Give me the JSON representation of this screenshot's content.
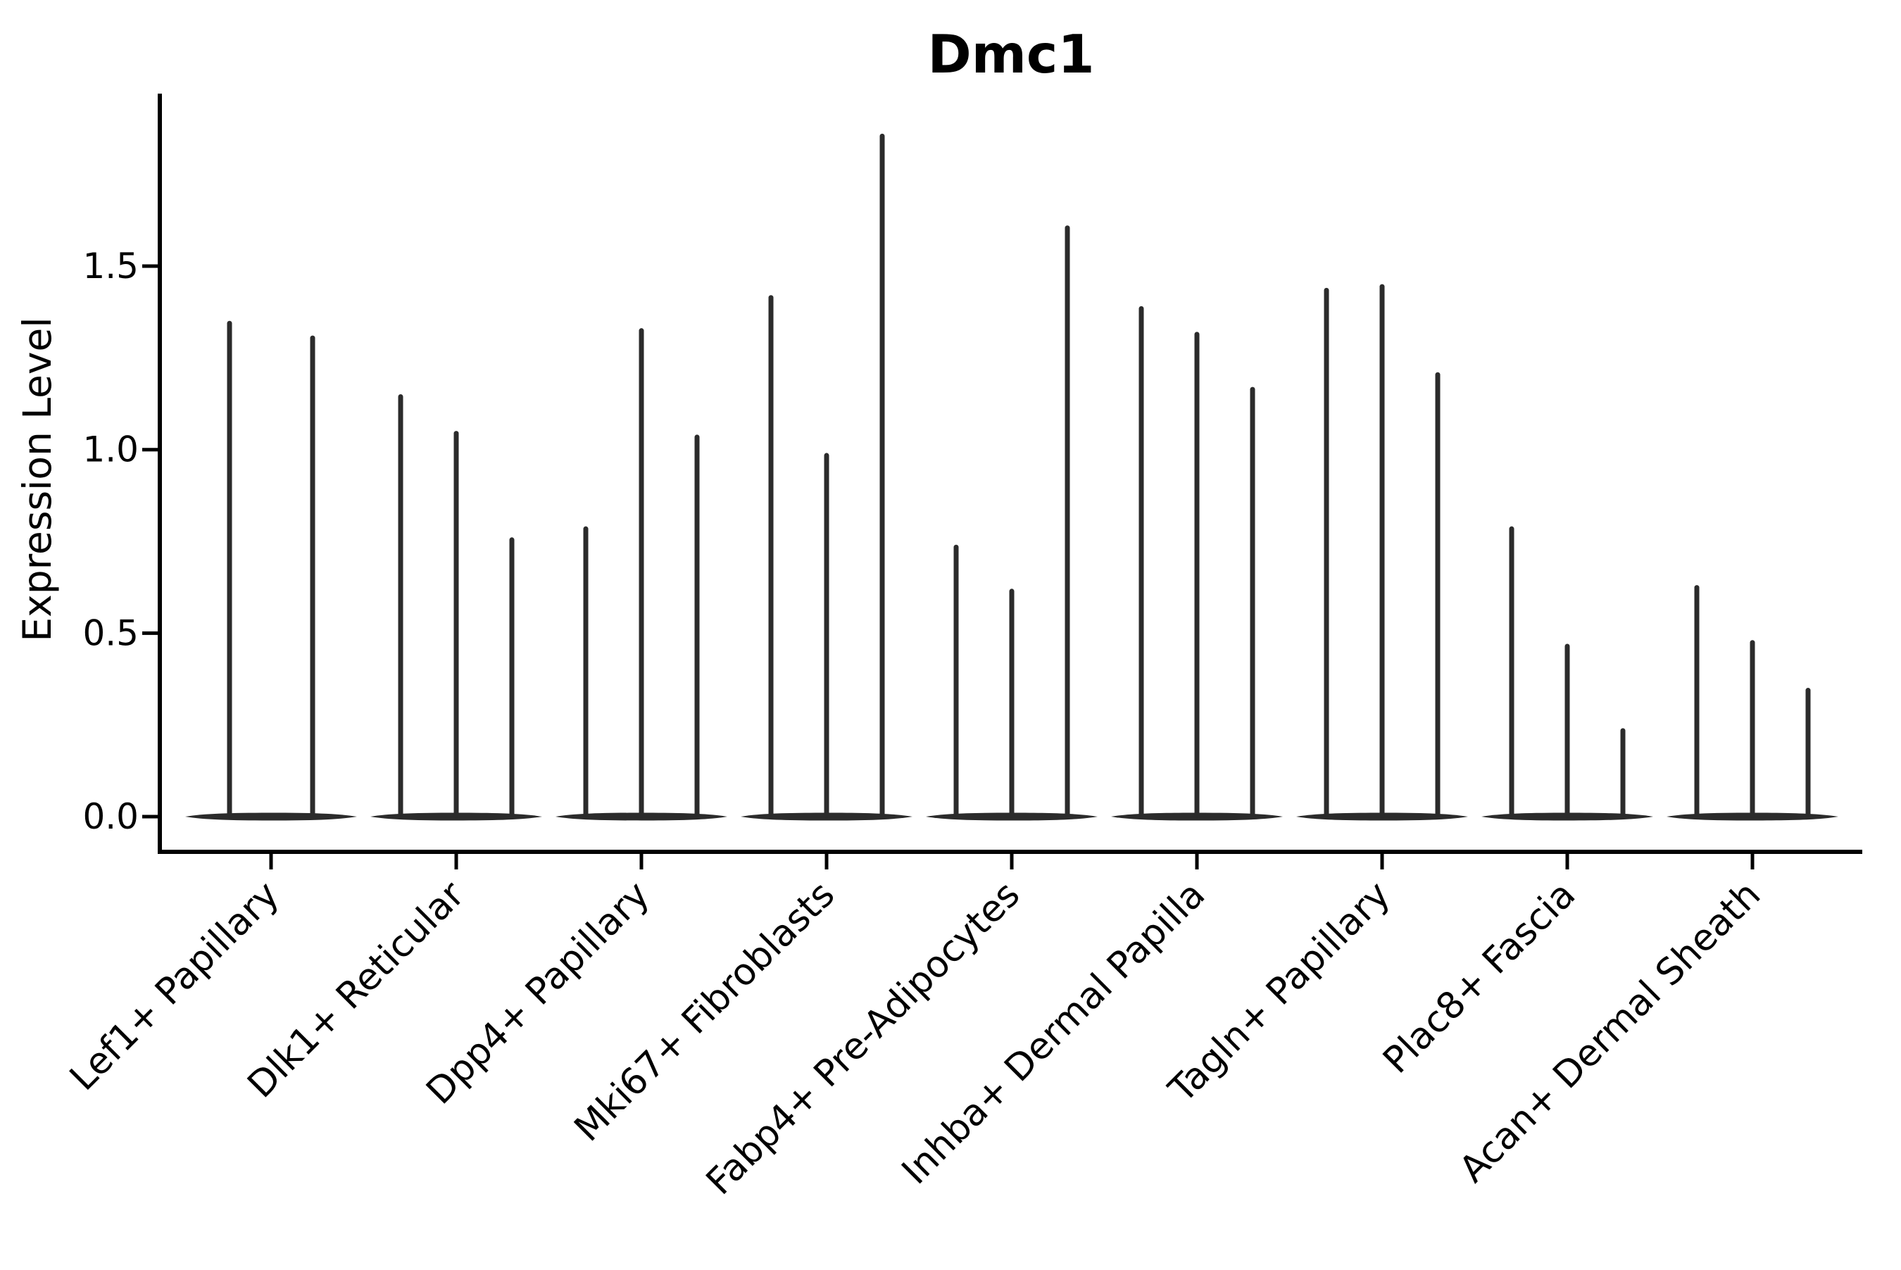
{
  "figure": {
    "title": "Dmc1"
  },
  "chart_data": {
    "type": "violin",
    "title": "Dmc1",
    "xlabel": "",
    "ylabel": "Expression Level",
    "yticks": [
      "0.0",
      "0.5",
      "1.0",
      "1.5"
    ],
    "ytick_values": [
      0.0,
      0.5,
      1.0,
      1.5
    ],
    "ylim": [
      -0.1,
      1.97
    ],
    "grid": false,
    "legend": "none",
    "categories": [
      "Lef1+ Papillary",
      "Dlk1+ Reticular",
      "Dpp4+ Papillary",
      "Mki67+ Fibroblasts",
      "Fabp4+ Pre-Adipocytes",
      "Inhba+ Dermal Papilla",
      "Tagln+ Papillary",
      "Plac8+ Fascia",
      "Acan+ Dermal Sheath"
    ],
    "description": "Violin plot of Dmc1 expression; each category holds 2-3 extremely narrow violins (expression concentrated at 0 with a thin spike up to the max value).",
    "violin_peaks": [
      [
        1.35,
        1.31
      ],
      [
        1.15,
        1.05,
        0.76
      ],
      [
        0.79,
        1.33,
        1.04
      ],
      [
        1.42,
        0.99,
        1.86
      ],
      [
        0.74,
        0.62,
        1.61
      ],
      [
        1.39,
        1.32,
        1.17
      ],
      [
        1.44,
        1.45,
        1.21
      ],
      [
        0.79,
        0.47,
        0.24
      ],
      [
        0.63,
        0.48,
        0.35
      ]
    ],
    "colors": {
      "violin": "#2b2b2b",
      "axis": "#000000",
      "text": "#000000",
      "background": "#ffffff"
    }
  }
}
